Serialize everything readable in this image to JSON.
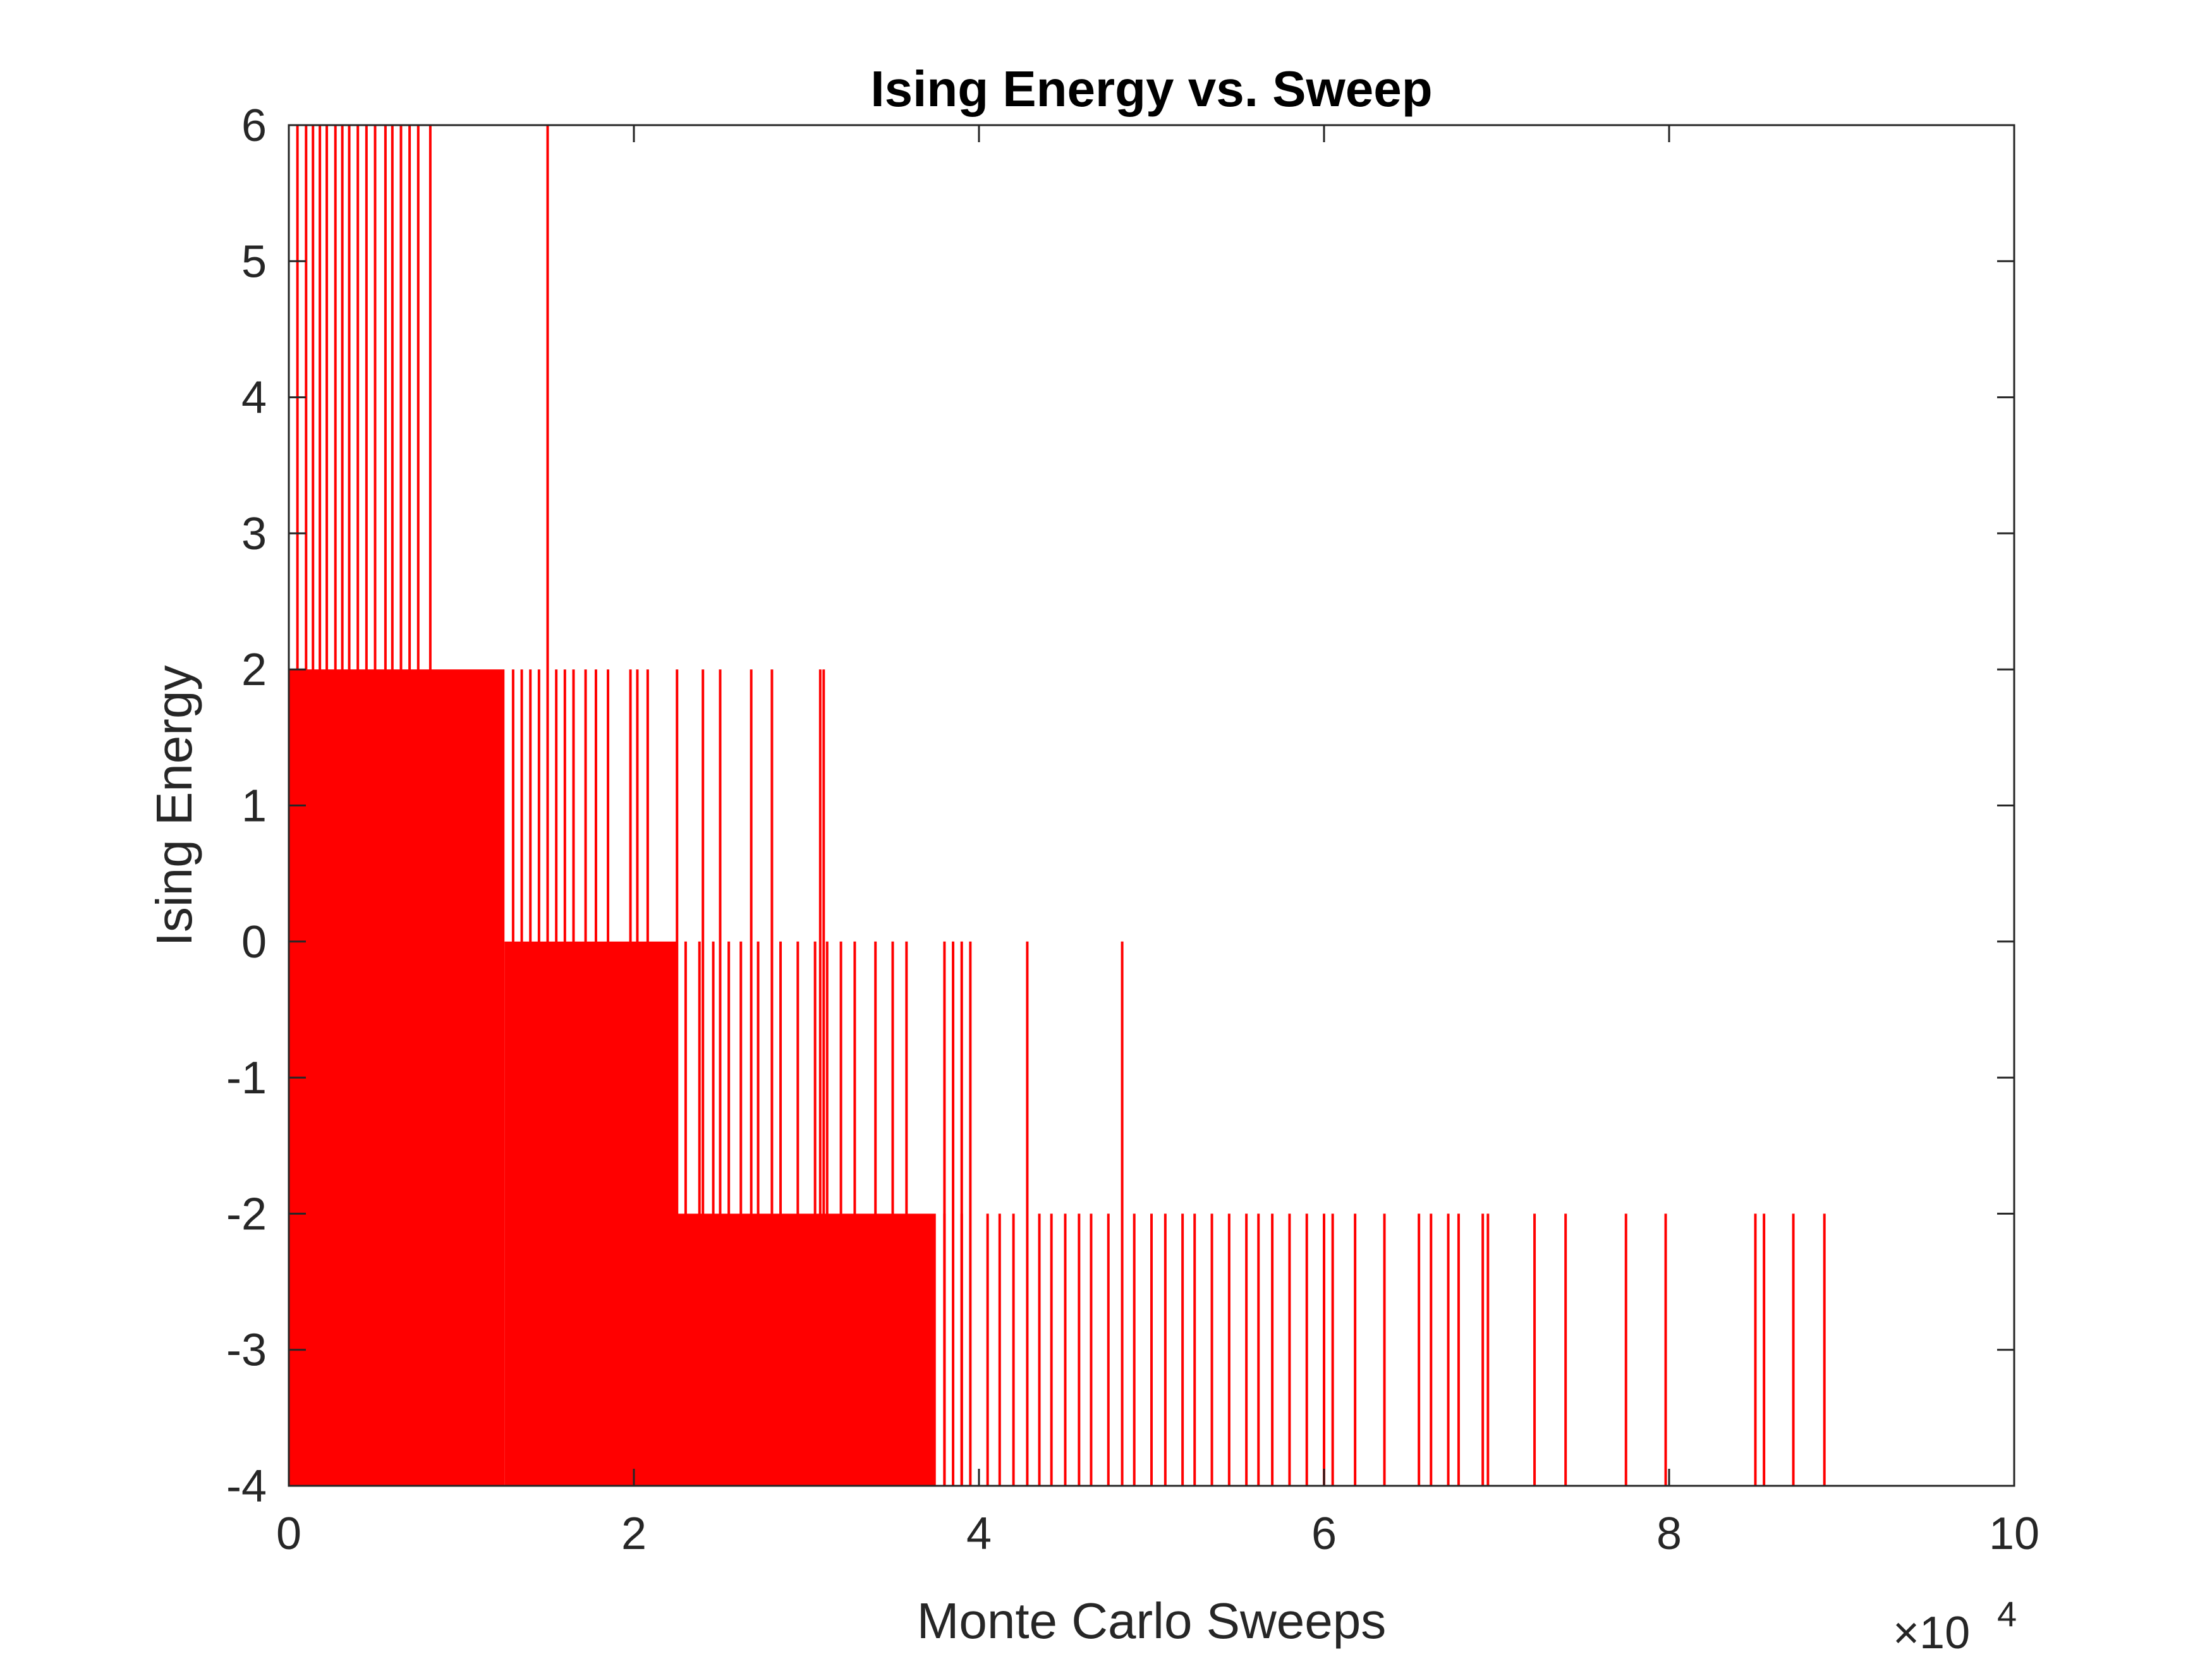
{
  "chart_data": {
    "type": "line",
    "title": "Ising Energy vs. Sweep",
    "xlabel": "Monte Carlo Sweeps",
    "ylabel": "Ising Energy",
    "x_exponent_base": "×10",
    "x_exponent_power": "4",
    "xlim": [
      0,
      10
    ],
    "ylim": [
      -4,
      6
    ],
    "x_ticks": [
      0,
      2,
      4,
      6,
      8,
      10
    ],
    "x_tick_labels": [
      "0",
      "2",
      "4",
      "6",
      "8",
      "10"
    ],
    "y_ticks": [
      6,
      5,
      4,
      3,
      2,
      1,
      0,
      -1,
      -2,
      -3,
      -4
    ],
    "y_tick_labels": [
      "6",
      "5",
      "4",
      "3",
      "2",
      "1",
      "0",
      "-1",
      "-2",
      "-3",
      "-4"
    ],
    "series_color": "#ff0000",
    "baseline_energy": -4,
    "dense_regions": [
      {
        "x_start": 0,
        "x_end": 1.25,
        "y_top": 2
      },
      {
        "x_start": 1.25,
        "x_end": 2.25,
        "y_top": 0
      },
      {
        "x_start": 2.25,
        "x_end": 3.75,
        "y_top": -2
      }
    ],
    "spikes": [
      {
        "x": 0.05,
        "y": 6
      },
      {
        "x": 0.1,
        "y": 6
      },
      {
        "x": 0.14,
        "y": 6
      },
      {
        "x": 0.18,
        "y": 6
      },
      {
        "x": 0.22,
        "y": 6
      },
      {
        "x": 0.27,
        "y": 6
      },
      {
        "x": 0.31,
        "y": 6
      },
      {
        "x": 0.35,
        "y": 6
      },
      {
        "x": 0.4,
        "y": 6
      },
      {
        "x": 0.45,
        "y": 6
      },
      {
        "x": 0.5,
        "y": 6
      },
      {
        "x": 0.56,
        "y": 6
      },
      {
        "x": 0.6,
        "y": 6
      },
      {
        "x": 0.65,
        "y": 6
      },
      {
        "x": 0.7,
        "y": 6
      },
      {
        "x": 0.75,
        "y": 6
      },
      {
        "x": 0.82,
        "y": 6
      },
      {
        "x": 1.5,
        "y": 6
      },
      {
        "x": 1.3,
        "y": 2
      },
      {
        "x": 1.35,
        "y": 2
      },
      {
        "x": 1.4,
        "y": 2
      },
      {
        "x": 1.45,
        "y": 2
      },
      {
        "x": 1.55,
        "y": 2
      },
      {
        "x": 1.6,
        "y": 2
      },
      {
        "x": 1.65,
        "y": 2
      },
      {
        "x": 1.72,
        "y": 2
      },
      {
        "x": 1.78,
        "y": 2
      },
      {
        "x": 1.85,
        "y": 2
      },
      {
        "x": 1.98,
        "y": 2
      },
      {
        "x": 2.02,
        "y": 2
      },
      {
        "x": 2.08,
        "y": 2
      },
      {
        "x": 2.25,
        "y": 2
      },
      {
        "x": 2.4,
        "y": 2
      },
      {
        "x": 2.5,
        "y": 2
      },
      {
        "x": 2.68,
        "y": 2
      },
      {
        "x": 2.8,
        "y": 2
      },
      {
        "x": 3.08,
        "y": 2
      },
      {
        "x": 3.1,
        "y": 2
      },
      {
        "x": 2.3,
        "y": 0
      },
      {
        "x": 2.38,
        "y": 0
      },
      {
        "x": 2.46,
        "y": 0
      },
      {
        "x": 2.55,
        "y": 0
      },
      {
        "x": 2.62,
        "y": 0
      },
      {
        "x": 2.72,
        "y": 0
      },
      {
        "x": 2.85,
        "y": 0
      },
      {
        "x": 2.95,
        "y": 0
      },
      {
        "x": 3.05,
        "y": 0
      },
      {
        "x": 3.12,
        "y": 0
      },
      {
        "x": 3.2,
        "y": 0
      },
      {
        "x": 3.28,
        "y": 0
      },
      {
        "x": 3.4,
        "y": 0
      },
      {
        "x": 3.5,
        "y": 0
      },
      {
        "x": 3.58,
        "y": 0
      },
      {
        "x": 3.8,
        "y": 0
      },
      {
        "x": 3.85,
        "y": 0
      },
      {
        "x": 3.9,
        "y": 0
      },
      {
        "x": 3.95,
        "y": 0
      },
      {
        "x": 4.28,
        "y": 0
      },
      {
        "x": 4.83,
        "y": 0
      },
      {
        "x": 3.8,
        "y": -2
      },
      {
        "x": 3.9,
        "y": -2
      },
      {
        "x": 4.05,
        "y": -2
      },
      {
        "x": 4.12,
        "y": -2
      },
      {
        "x": 4.2,
        "y": -2
      },
      {
        "x": 4.35,
        "y": -2
      },
      {
        "x": 4.42,
        "y": -2
      },
      {
        "x": 4.5,
        "y": -2
      },
      {
        "x": 4.58,
        "y": -2
      },
      {
        "x": 4.65,
        "y": -2
      },
      {
        "x": 4.75,
        "y": -2
      },
      {
        "x": 4.9,
        "y": -2
      },
      {
        "x": 5.0,
        "y": -2
      },
      {
        "x": 5.08,
        "y": -2
      },
      {
        "x": 5.18,
        "y": -2
      },
      {
        "x": 5.25,
        "y": -2
      },
      {
        "x": 5.35,
        "y": -2
      },
      {
        "x": 5.45,
        "y": -2
      },
      {
        "x": 5.55,
        "y": -2
      },
      {
        "x": 5.62,
        "y": -2
      },
      {
        "x": 5.7,
        "y": -2
      },
      {
        "x": 5.8,
        "y": -2
      },
      {
        "x": 5.9,
        "y": -2
      },
      {
        "x": 6.0,
        "y": -2
      },
      {
        "x": 6.05,
        "y": -2
      },
      {
        "x": 6.18,
        "y": -2
      },
      {
        "x": 6.35,
        "y": -2
      },
      {
        "x": 6.55,
        "y": -2
      },
      {
        "x": 6.62,
        "y": -2
      },
      {
        "x": 6.72,
        "y": -2
      },
      {
        "x": 6.78,
        "y": -2
      },
      {
        "x": 6.92,
        "y": -2
      },
      {
        "x": 6.95,
        "y": -2
      },
      {
        "x": 7.22,
        "y": -2
      },
      {
        "x": 7.4,
        "y": -2
      },
      {
        "x": 7.75,
        "y": -2
      },
      {
        "x": 7.98,
        "y": -2
      },
      {
        "x": 8.5,
        "y": -2
      },
      {
        "x": 8.55,
        "y": -2
      },
      {
        "x": 8.72,
        "y": -2
      },
      {
        "x": 8.9,
        "y": -2
      }
    ]
  }
}
